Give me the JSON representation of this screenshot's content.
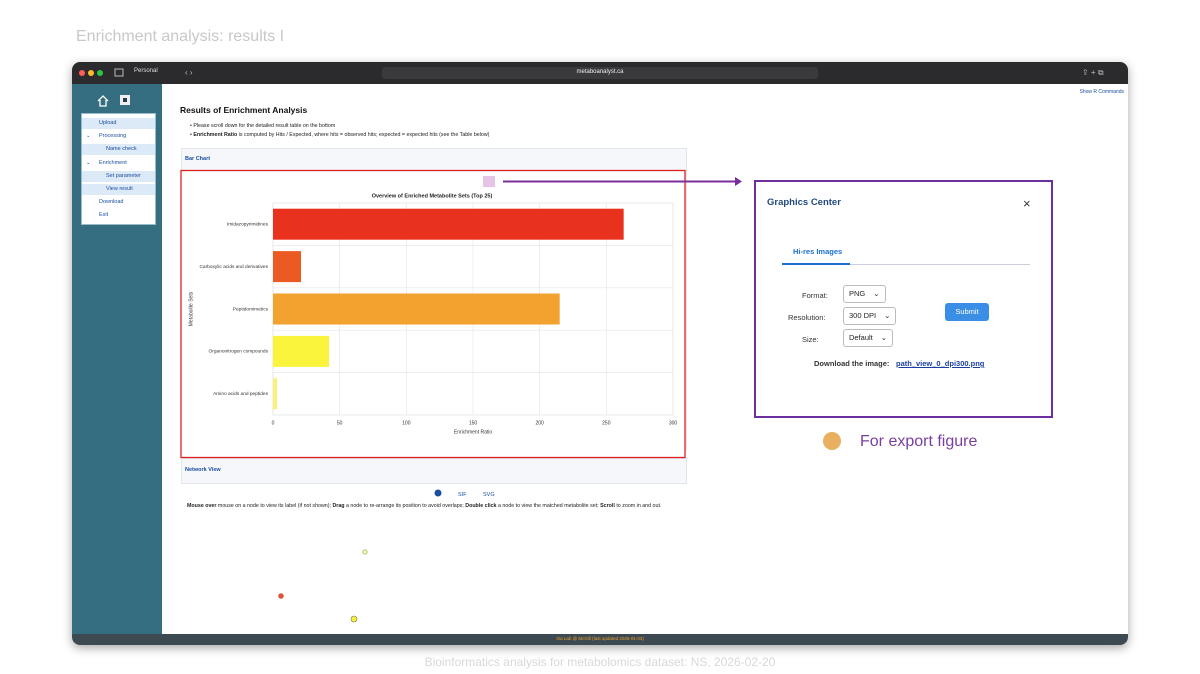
{
  "slide": {
    "title": "Enrichment analysis: results I",
    "footer": "Bioinformatics analysis for metabolomics dataset: NS, 2026-02-20",
    "callout": "For export figure"
  },
  "browser": {
    "profile": "Personal",
    "url": "metaboanalyst.ca"
  },
  "sidebar": {
    "menu": [
      "Upload",
      "Processing",
      "Name check",
      "Enrichment",
      "Set parameter",
      "View result",
      "Download",
      "Exit"
    ]
  },
  "page": {
    "show_r": "Show R Commands",
    "heading": "Results of Enrichment Analysis",
    "bullets": [
      {
        "text": "Please scroll down for the detailed result table on the bottom"
      },
      {
        "bold": "Enrichment Ratio",
        "text": " is computed by Hits / Expected, where hits = observed hits; expected = expected hits (see the Table below)"
      }
    ],
    "bar_section": "Bar Chart",
    "network_section": "Network View",
    "network_links": [
      "SIF",
      "SVG"
    ],
    "network_help": [
      {
        "bold": "Mouse over",
        "text": " mouse on a node to view its label (if not shown); "
      },
      {
        "bold": "Drag",
        "text": " a node to re-arrange its position to avoid overlaps; "
      },
      {
        "bold": "Double click",
        "text": " a node to view the matched metabolite set; "
      },
      {
        "bold": "Scroll",
        "text": " to zoom in and out."
      }
    ],
    "status": "Xia Lab @ McGill (last updated 2026-01-03)"
  },
  "chart_data": {
    "type": "bar",
    "orientation": "horizontal",
    "title": "Overview of Enriched Metabolite Sets (Top 25)",
    "x_label": "Enrichment Ratio",
    "y_label": "Metabolite Sets",
    "categories": [
      "Imidazopyrimidines",
      "Carboxylic acids and derivatives",
      "Peptidomimetics",
      "Organonitrogen compounds",
      "Amino acids and peptides"
    ],
    "values": [
      263,
      21,
      215,
      42,
      3
    ],
    "colors": [
      "#e8321e",
      "#ec5a24",
      "#f2a22e",
      "#faf53c",
      "#f7f27a"
    ],
    "xlim": [
      0,
      300
    ],
    "xticks": [
      0,
      50,
      100,
      150,
      200,
      250,
      300
    ],
    "grid": true
  },
  "dialog": {
    "title": "Graphics Center",
    "tab": "Hi-res Images",
    "fields": [
      {
        "label": "Format:",
        "value": "PNG"
      },
      {
        "label": "Resolution:",
        "value": "300 DPI"
      },
      {
        "label": "Size:",
        "value": "Default"
      }
    ],
    "submit": "Submit",
    "download_label": "Download the image:",
    "download_file": "path_view_0_dpi300.png"
  }
}
